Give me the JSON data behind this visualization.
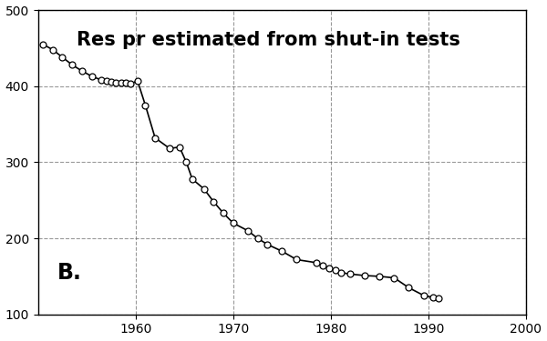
{
  "title": "Res pr estimated from shut-in tests",
  "label": "B.",
  "xlim": [
    1950,
    2000
  ],
  "ylim": [
    100,
    500
  ],
  "xticks": [
    1960,
    1970,
    1980,
    1990,
    2000
  ],
  "yticks": [
    100,
    200,
    300,
    400,
    500
  ],
  "x": [
    1950.5,
    1951.5,
    1952.5,
    1953.5,
    1954.5,
    1955.5,
    1956.5,
    1957.0,
    1957.5,
    1958.0,
    1958.5,
    1959.0,
    1959.5,
    1960.2,
    1961.0,
    1962.0,
    1963.5,
    1964.5,
    1965.2,
    1965.8,
    1967.0,
    1968.0,
    1969.0,
    1970.0,
    1971.5,
    1972.5,
    1973.5,
    1975.0,
    1976.5,
    1978.5,
    1979.2,
    1979.8,
    1980.5,
    1981.0,
    1982.0,
    1983.5,
    1985.0,
    1986.5,
    1988.0,
    1989.5,
    1990.5,
    1991.0
  ],
  "y": [
    455,
    448,
    438,
    428,
    420,
    413,
    408,
    407,
    406,
    405,
    405,
    404,
    403,
    407,
    375,
    332,
    318,
    320,
    300,
    278,
    265,
    248,
    233,
    220,
    210,
    200,
    192,
    183,
    172,
    168,
    164,
    161,
    158,
    155,
    153,
    151,
    150,
    148,
    135,
    125,
    122,
    121
  ],
  "line_color": "black",
  "marker_color": "white",
  "marker_edge_color": "black",
  "marker_size": 5,
  "line_width": 1.2,
  "grid_color": "#555555",
  "grid_style": "--",
  "grid_alpha": 0.6,
  "title_fontsize": 15,
  "title_fontweight": "bold",
  "label_fontsize": 17,
  "label_fontweight": "bold",
  "tick_fontsize": 10,
  "background_color": "white"
}
